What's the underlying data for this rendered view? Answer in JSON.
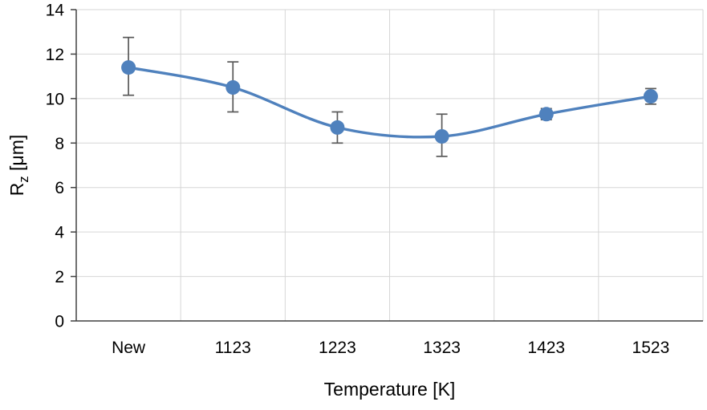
{
  "chart_data": {
    "type": "line",
    "title": "",
    "xlabel": "Temperature [K]",
    "ylabel": "Rz [μm]",
    "ylabel_parts": {
      "base": "R",
      "sub": "z",
      "unit": " [μm]"
    },
    "categories": [
      "New",
      "1123",
      "1223",
      "1323",
      "1423",
      "1523"
    ],
    "series": [
      {
        "name": "Rz",
        "values": [
          11.4,
          10.5,
          8.7,
          8.3,
          9.3,
          10.1
        ],
        "error_plus": [
          1.35,
          1.15,
          0.7,
          1.0,
          0.25,
          0.35
        ],
        "error_minus": [
          1.25,
          1.1,
          0.7,
          0.9,
          0.25,
          0.35
        ]
      }
    ],
    "ylim": [
      0,
      14
    ],
    "y_ticks": [
      0,
      2,
      4,
      6,
      8,
      10,
      12,
      14
    ],
    "grid": "both",
    "legend": "none",
    "smooth_line": true,
    "colors": {
      "line": "#4f81bd",
      "marker": "#4f81bd",
      "error": "#595959",
      "grid": "#d6d6d6",
      "axis": "#404040",
      "text": "#000000",
      "background": "#ffffff"
    }
  }
}
